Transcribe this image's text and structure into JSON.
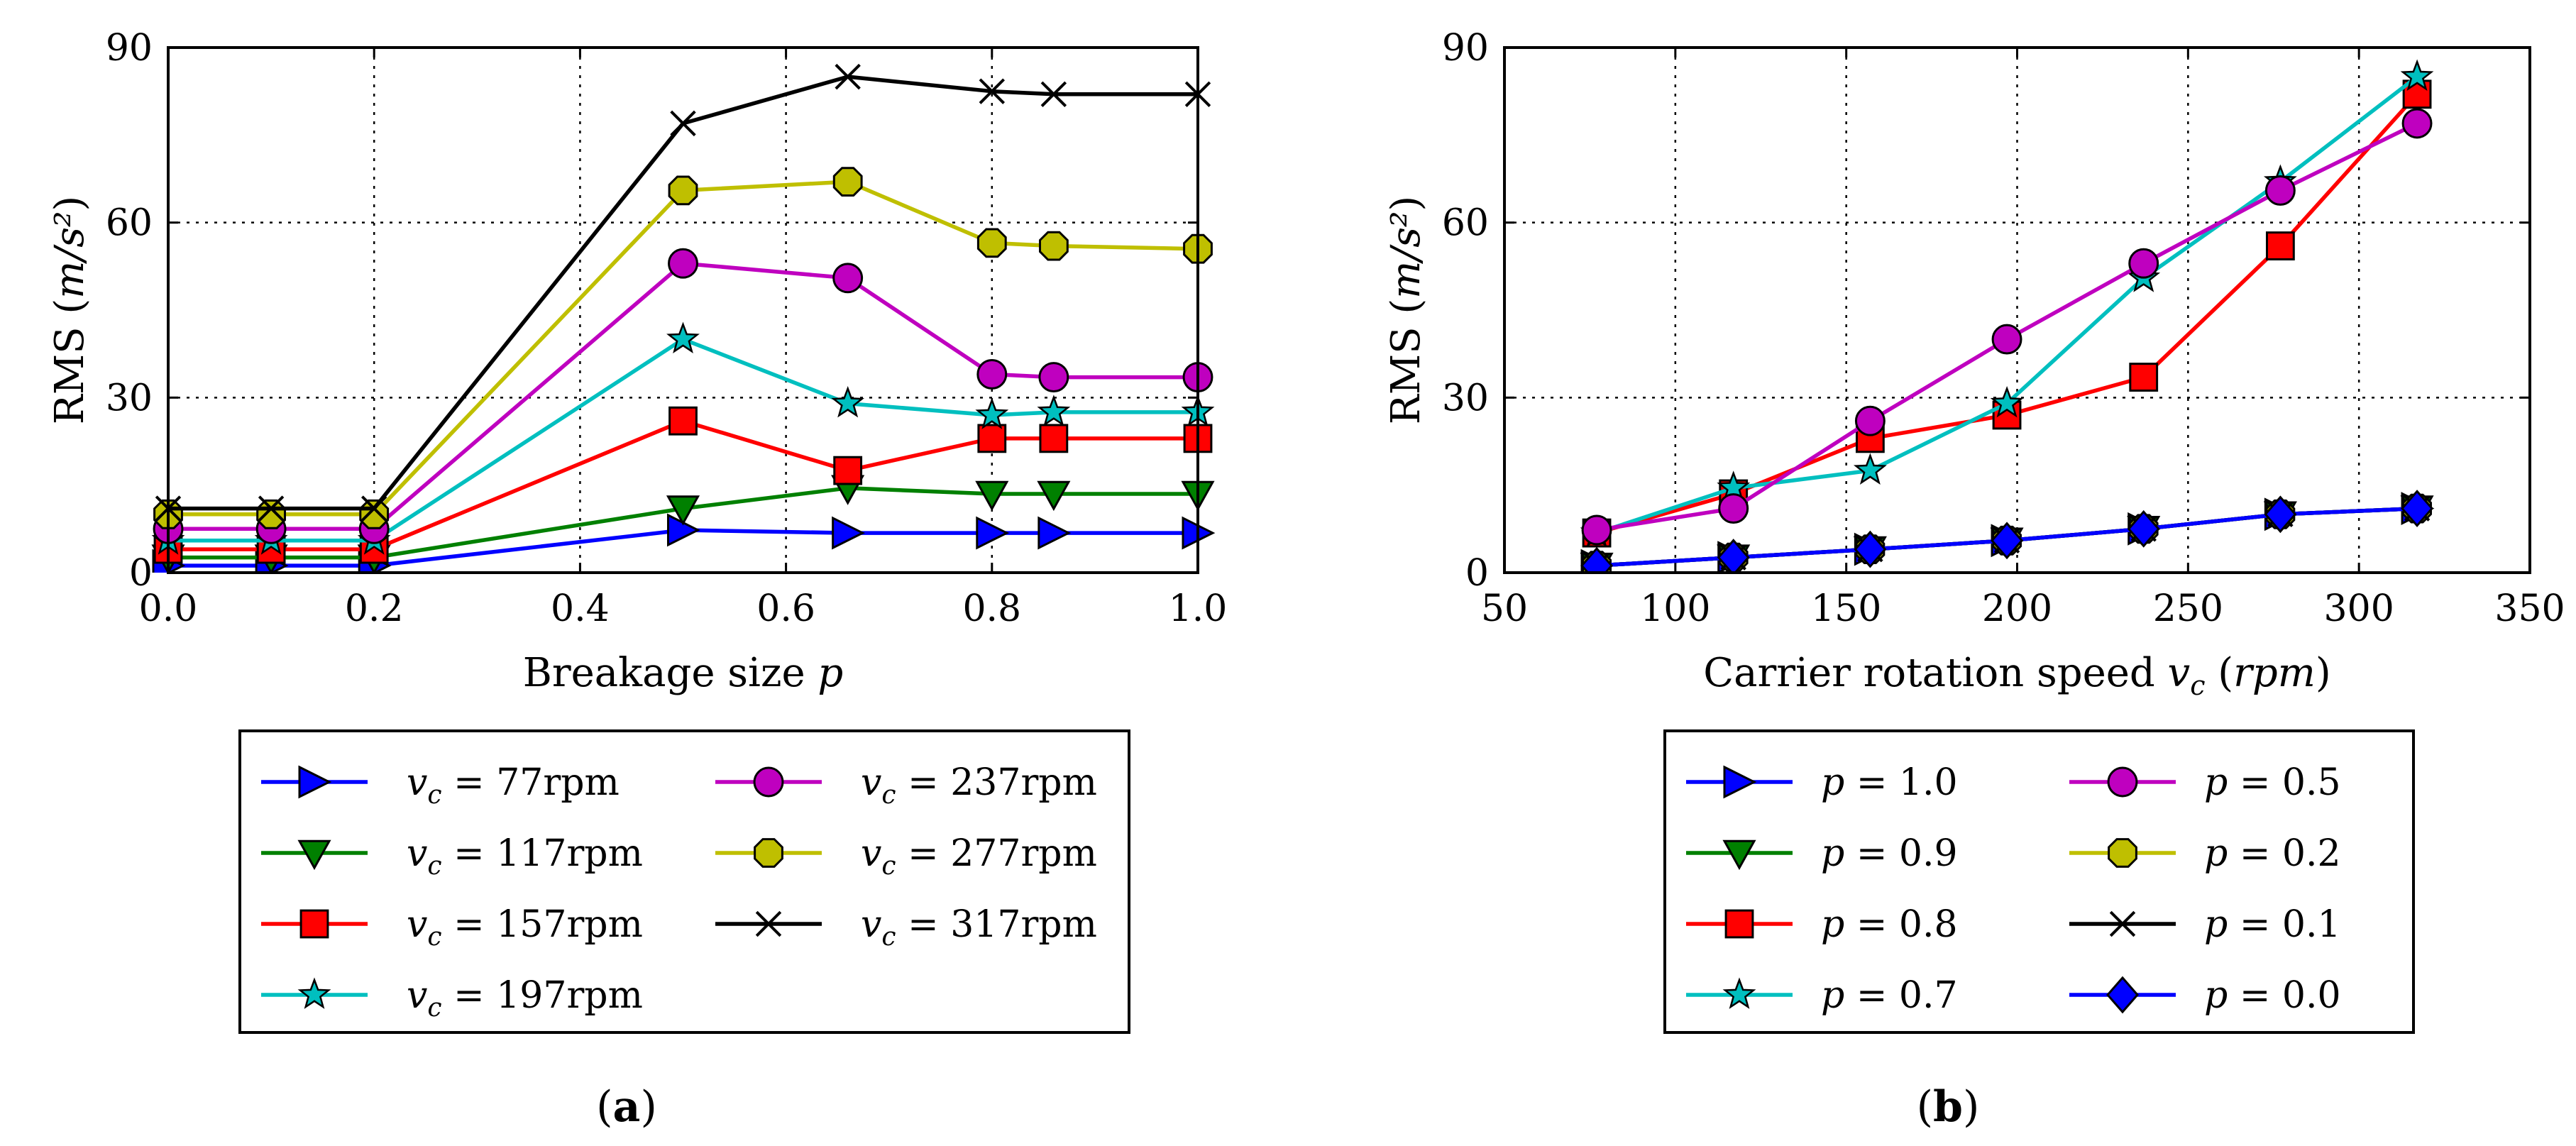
{
  "chart_data": [
    {
      "type": "line",
      "panel_label": "(a)",
      "xlabel": "Breakage size p",
      "ylabel": "RMS (m/s²)",
      "xlim": [
        0.0,
        1.0
      ],
      "ylim": [
        0,
        90
      ],
      "xticks": [
        "0.0",
        "0.2",
        "0.4",
        "0.6",
        "0.8",
        "1.0"
      ],
      "yticks": [
        "0",
        "30",
        "60",
        "90"
      ],
      "grid": true,
      "legend_position": "below",
      "x": [
        0.0,
        0.1,
        0.2,
        0.5,
        0.66,
        0.8,
        0.86,
        1.0
      ],
      "series": [
        {
          "name": "vc = 77rpm",
          "legend_sub": "c",
          "legend_value": "77rpm",
          "color": "#0000ff",
          "marker": "tri-right",
          "values": [
            1.2,
            1.2,
            1.2,
            7.3,
            6.8,
            6.8,
            6.8,
            6.8
          ]
        },
        {
          "name": "vc = 117rpm",
          "legend_sub": "c",
          "legend_value": "117rpm",
          "color": "#008000",
          "marker": "tri-down",
          "values": [
            2.6,
            2.6,
            2.6,
            11.0,
            14.5,
            13.5,
            13.5,
            13.5
          ]
        },
        {
          "name": "vc = 157rpm",
          "legend_sub": "c",
          "legend_value": "157rpm",
          "color": "#ff0000",
          "marker": "square",
          "values": [
            4.0,
            4.0,
            4.0,
            26.0,
            17.5,
            23.0,
            23.0,
            23.0
          ]
        },
        {
          "name": "vc = 197rpm",
          "legend_sub": "c",
          "legend_value": "197rpm",
          "color": "#00bfbf",
          "marker": "star",
          "values": [
            5.5,
            5.5,
            5.5,
            40.0,
            29.0,
            27.0,
            27.5,
            27.5
          ]
        },
        {
          "name": "vc = 237rpm",
          "legend_sub": "c",
          "legend_value": "237rpm",
          "color": "#bf00bf",
          "marker": "circle",
          "values": [
            7.5,
            7.5,
            7.5,
            53.0,
            50.5,
            34.0,
            33.5,
            33.5
          ]
        },
        {
          "name": "vc = 277rpm",
          "legend_sub": "c",
          "legend_value": "277rpm",
          "color": "#bfbf00",
          "marker": "octagon",
          "values": [
            10.0,
            10.0,
            10.0,
            65.5,
            67.0,
            56.5,
            56.0,
            55.5
          ]
        },
        {
          "name": "vc = 317rpm",
          "legend_sub": "c",
          "legend_value": "317rpm",
          "color": "#000000",
          "marker": "x",
          "values": [
            11.0,
            11.0,
            11.0,
            77.0,
            85.0,
            82.5,
            82.0,
            82.0
          ]
        }
      ]
    },
    {
      "type": "line",
      "panel_label": "(b)",
      "xlabel": "Carrier rotation speed vc (rpm)",
      "ylabel": "RMS (m/s²)",
      "xlim": [
        50,
        350
      ],
      "ylim": [
        0,
        90
      ],
      "xticks": [
        "50",
        "100",
        "150",
        "200",
        "250",
        "300",
        "350"
      ],
      "yticks": [
        "0",
        "30",
        "60",
        "90"
      ],
      "grid": true,
      "legend_position": "below",
      "x": [
        77,
        117,
        157,
        197,
        237,
        277,
        317
      ],
      "series": [
        {
          "name": "p = 1.0",
          "legend_value": "1.0",
          "color": "#0000ff",
          "marker": "tri-right",
          "values": [
            1.2,
            2.6,
            4.0,
            5.5,
            7.5,
            10.0,
            11.0
          ]
        },
        {
          "name": "p = 0.9",
          "legend_value": "0.9",
          "color": "#008000",
          "marker": "tri-down",
          "values": [
            1.2,
            2.6,
            4.0,
            5.5,
            7.5,
            10.0,
            11.0
          ]
        },
        {
          "name": "p = 0.8",
          "legend_value": "0.8",
          "color": "#ff0000",
          "marker": "square",
          "values": [
            6.8,
            13.5,
            23.0,
            27.0,
            33.5,
            56.0,
            82.0
          ]
        },
        {
          "name": "p = 0.7",
          "legend_value": "0.7",
          "color": "#00bfbf",
          "marker": "star",
          "values": [
            6.8,
            14.5,
            17.5,
            29.0,
            50.5,
            67.0,
            85.0
          ]
        },
        {
          "name": "p = 0.5",
          "legend_value": "0.5",
          "color": "#bf00bf",
          "marker": "circle",
          "values": [
            7.3,
            11.0,
            26.0,
            40.0,
            53.0,
            65.5,
            77.0
          ]
        },
        {
          "name": "p = 0.2",
          "legend_value": "0.2",
          "color": "#bfbf00",
          "marker": "octagon",
          "values": [
            1.2,
            2.6,
            4.0,
            5.5,
            7.5,
            10.0,
            11.0
          ]
        },
        {
          "name": "p = 0.1",
          "legend_value": "0.1",
          "color": "#000000",
          "marker": "x",
          "values": [
            1.2,
            2.6,
            4.0,
            5.5,
            7.5,
            10.0,
            11.0
          ]
        },
        {
          "name": "p = 0.0",
          "legend_value": "0.0",
          "color": "#0000ff",
          "marker": "diamond",
          "values": [
            1.2,
            2.6,
            4.0,
            5.5,
            7.5,
            10.0,
            11.0
          ]
        }
      ]
    }
  ]
}
